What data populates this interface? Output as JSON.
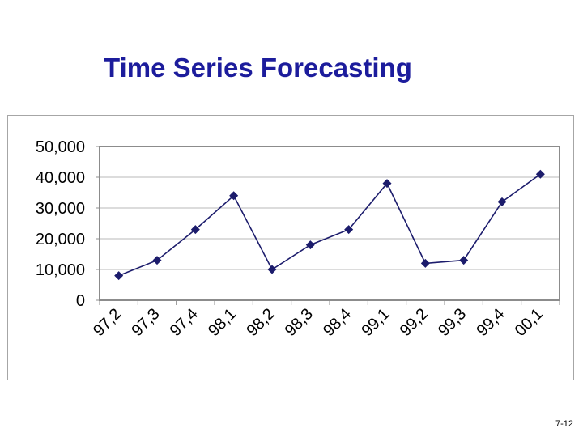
{
  "slide": {
    "title": "Time Series Forecasting",
    "page_number": "7-12"
  },
  "chart_data": {
    "type": "line",
    "title": "",
    "xlabel": "",
    "ylabel": "",
    "categories": [
      "97,2",
      "97,3",
      "97,4",
      "98,1",
      "98,2",
      "98,3",
      "98,4",
      "99,1",
      "99,2",
      "99,3",
      "99,4",
      "00,1"
    ],
    "series": [
      {
        "values": [
          8000,
          13000,
          23000,
          34000,
          10000,
          18000,
          23000,
          38000,
          12000,
          13000,
          32000,
          41000
        ]
      }
    ],
    "y_ticks": [
      0,
      10000,
      20000,
      30000,
      40000,
      50000
    ],
    "y_tick_labels": [
      "0",
      "10,000",
      "20,000",
      "30,000",
      "40,000",
      "50,000"
    ],
    "ylim": [
      0,
      50000
    ],
    "grid": "horizontal",
    "legend": "none",
    "line_color": "#1c1c6c",
    "marker": "diamond",
    "plot_border_color": "#8c8c8c",
    "grid_color": "#b8b8b8"
  }
}
